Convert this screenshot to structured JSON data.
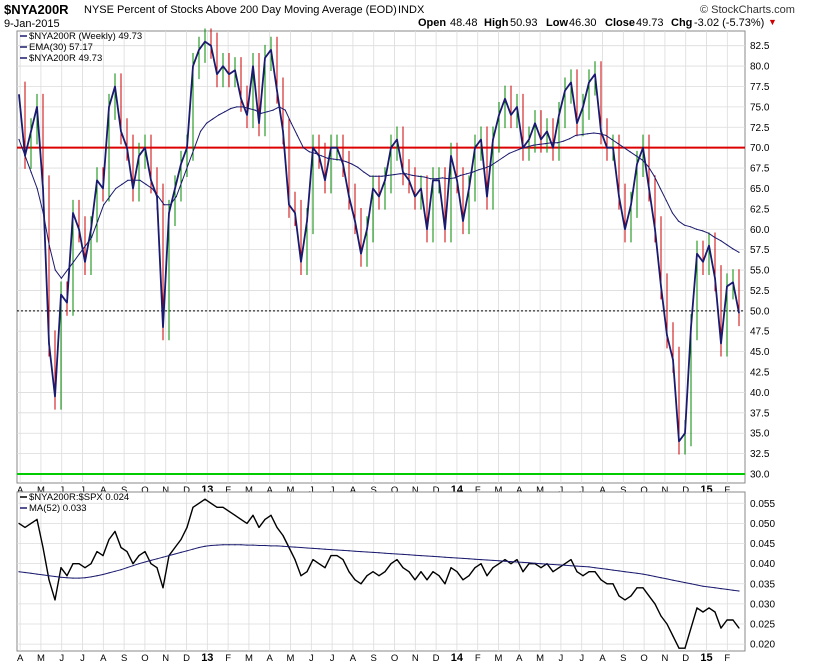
{
  "header": {
    "symbol": "$NYA200R",
    "description": "NYSE Percent of Stocks Above 200 Day Moving Average (EOD)",
    "exchange": "INDX",
    "date": "9-Jan-2015",
    "ohlc": [
      {
        "label": "Open",
        "value": "48.48"
      },
      {
        "label": "High",
        "value": "50.93"
      },
      {
        "label": "Low",
        "value": "46.30"
      },
      {
        "label": "Close",
        "value": "49.73"
      },
      {
        "label": "Chg",
        "value": "-3.02 (-5.73%)"
      }
    ],
    "watermark": "© StockCharts.com",
    "colors": {
      "down": "#cc0000",
      "up": "#008800",
      "brand": "#333333"
    }
  },
  "chart_data": [
    {
      "type": "line",
      "panel": "main",
      "legend": [
        {
          "text": "$NYA200R (Weekly) 49.73",
          "color": "#1a1a6e"
        },
        {
          "text": "EMA(30) 57.17",
          "color": "#1a1a6e"
        },
        {
          "text": "$NYA200R 49.73",
          "color": "#1a1a6e"
        }
      ],
      "ylim": [
        28.9,
        84.3
      ],
      "yticks": [
        "82.5",
        "80.0",
        "77.5",
        "75.0",
        "72.5",
        "70.0",
        "67.5",
        "65.0",
        "62.5",
        "60.0",
        "57.5",
        "55.0",
        "52.5",
        "50.0",
        "47.5",
        "45.0",
        "42.5",
        "40.0",
        "37.5",
        "35.0",
        "32.5",
        "30.0"
      ],
      "hlines": [
        {
          "value": 70.0,
          "color": "#dd0000"
        },
        {
          "value": 30.0,
          "color": "#00cc00"
        },
        {
          "value": 50.0,
          "color": "#000000",
          "style": "dotted"
        }
      ],
      "series": [
        {
          "name": "$NYA200R",
          "color": "#1a1a6e",
          "values": [
            76.5,
            69,
            72,
            75,
            65,
            46,
            39.5,
            52,
            51,
            62,
            60,
            56,
            60,
            66,
            65,
            75,
            77.5,
            72,
            70,
            65,
            69,
            70,
            66,
            64,
            48,
            62,
            65,
            68,
            70,
            80,
            82,
            83,
            82.5,
            79,
            80,
            79,
            79.5,
            76,
            74,
            80,
            73,
            81,
            82,
            77,
            72,
            63,
            62,
            56,
            61,
            70,
            69,
            66,
            70,
            70,
            68,
            64,
            61,
            57,
            60,
            65,
            64,
            66,
            70,
            71,
            67,
            66,
            64,
            65,
            60,
            66,
            66,
            60,
            69,
            66,
            61,
            65,
            70,
            71,
            64,
            71,
            74,
            76,
            74,
            75,
            70,
            71,
            73,
            71,
            72,
            70,
            74,
            77,
            78,
            73,
            75,
            78,
            79,
            72,
            70,
            70,
            64,
            60,
            63,
            68,
            70,
            65,
            60,
            53,
            47,
            44,
            34,
            35,
            48,
            57,
            56,
            58,
            54,
            46,
            53,
            53.5,
            49.73
          ]
        },
        {
          "name": "EMA(30)",
          "color": "#1a1a6e",
          "values": [
            71,
            69,
            67,
            65,
            62,
            58,
            55,
            54,
            55,
            56,
            57,
            58,
            59,
            61,
            63,
            64,
            65,
            65.5,
            66,
            66,
            66,
            65.5,
            65,
            64,
            63,
            63,
            64,
            66,
            68,
            70,
            72,
            73,
            73.5,
            74,
            74.4,
            74.8,
            75,
            75,
            74.8,
            74.6,
            74.2,
            74.4,
            74.6,
            75,
            74.6,
            73,
            71.5,
            70,
            69.5,
            69.3,
            69,
            68.7,
            68.6,
            68.5,
            68.3,
            68,
            67.6,
            67,
            66.5,
            66.5,
            66.5,
            66.6,
            66.7,
            66.8,
            66.8,
            66.6,
            66.5,
            66.4,
            66.2,
            66.2,
            66.3,
            66.2,
            66.3,
            66.6,
            66.8,
            67,
            67.3,
            67.5,
            67.8,
            68.3,
            68.8,
            69.3,
            69.6,
            69.9,
            70.1,
            70.3,
            70.4,
            70.5,
            70.6,
            70.6,
            70.8,
            71.1,
            71.5,
            71.6,
            71.7,
            71.8,
            71.7,
            71.5,
            71,
            70.5,
            70,
            69.5,
            69,
            68.5,
            67.7,
            66.5,
            65,
            63.5,
            62,
            61,
            60.5,
            60.3,
            60,
            59.8,
            59.5,
            59,
            58.6,
            58.1,
            57.6,
            57.17
          ]
        }
      ]
    },
    {
      "type": "line",
      "panel": "ratio",
      "legend": [
        {
          "text": "$NYA200R:$SPX 0.024",
          "color": "#000000"
        },
        {
          "text": "MA(52) 0.033",
          "color": "#1a1a6e"
        }
      ],
      "ylim": [
        0.0183,
        0.0578
      ],
      "yticks": [
        "0.055",
        "0.050",
        "0.045",
        "0.040",
        "0.035",
        "0.030",
        "0.025",
        "0.020"
      ],
      "series": [
        {
          "name": "$NYA200R:$SPX",
          "color": "#000000",
          "values": [
            0.05,
            0.049,
            0.05,
            0.051,
            0.044,
            0.036,
            0.031,
            0.039,
            0.037,
            0.04,
            0.04,
            0.039,
            0.04,
            0.043,
            0.042,
            0.046,
            0.048,
            0.044,
            0.043,
            0.04,
            0.042,
            0.043,
            0.04,
            0.039,
            0.034,
            0.042,
            0.044,
            0.046,
            0.049,
            0.054,
            0.055,
            0.056,
            0.055,
            0.054,
            0.054,
            0.053,
            0.052,
            0.051,
            0.05,
            0.052,
            0.049,
            0.051,
            0.052,
            0.049,
            0.047,
            0.044,
            0.041,
            0.037,
            0.038,
            0.041,
            0.04,
            0.039,
            0.042,
            0.042,
            0.041,
            0.038,
            0.036,
            0.035,
            0.037,
            0.038,
            0.037,
            0.038,
            0.04,
            0.041,
            0.039,
            0.038,
            0.036,
            0.038,
            0.036,
            0.038,
            0.037,
            0.035,
            0.039,
            0.038,
            0.036,
            0.037,
            0.039,
            0.04,
            0.037,
            0.039,
            0.04,
            0.041,
            0.04,
            0.041,
            0.038,
            0.04,
            0.04,
            0.039,
            0.04,
            0.038,
            0.039,
            0.04,
            0.041,
            0.038,
            0.037,
            0.038,
            0.038,
            0.036,
            0.035,
            0.035,
            0.032,
            0.031,
            0.032,
            0.034,
            0.034,
            0.032,
            0.03,
            0.027,
            0.025,
            0.022,
            0.019,
            0.019,
            0.024,
            0.029,
            0.028,
            0.029,
            0.028,
            0.024,
            0.026,
            0.026,
            0.024
          ]
        },
        {
          "name": "MA(52)",
          "color": "#1a1a6e",
          "values": [
            0.038,
            0.0378,
            0.0376,
            0.0374,
            0.0372,
            0.037,
            0.0368,
            0.0366,
            0.0365,
            0.0364,
            0.0364,
            0.0365,
            0.0367,
            0.037,
            0.0373,
            0.0377,
            0.0381,
            0.0385,
            0.039,
            0.0395,
            0.04,
            0.0404,
            0.0408,
            0.0412,
            0.0416,
            0.042,
            0.0424,
            0.0428,
            0.0432,
            0.0436,
            0.044,
            0.0443,
            0.0445,
            0.0446,
            0.0447,
            0.0447,
            0.0447,
            0.0447,
            0.0446,
            0.0446,
            0.0445,
            0.0445,
            0.0444,
            0.0444,
            0.0443,
            0.0442,
            0.0441,
            0.044,
            0.0439,
            0.0438,
            0.0437,
            0.0436,
            0.0435,
            0.0434,
            0.0433,
            0.0432,
            0.0431,
            0.043,
            0.0429,
            0.0428,
            0.0427,
            0.0426,
            0.0425,
            0.0424,
            0.0423,
            0.0422,
            0.0421,
            0.042,
            0.0419,
            0.0418,
            0.0417,
            0.0416,
            0.0415,
            0.0414,
            0.0413,
            0.0412,
            0.0411,
            0.041,
            0.0409,
            0.0408,
            0.0407,
            0.0406,
            0.0405,
            0.0404,
            0.0403,
            0.0402,
            0.0401,
            0.04,
            0.0399,
            0.0398,
            0.0397,
            0.0396,
            0.0395,
            0.0394,
            0.0393,
            0.0392,
            0.039,
            0.0388,
            0.0386,
            0.0384,
            0.0382,
            0.038,
            0.0378,
            0.0376,
            0.0374,
            0.0371,
            0.0368,
            0.0365,
            0.0362,
            0.0359,
            0.0356,
            0.0353,
            0.035,
            0.0347,
            0.0344,
            0.0342,
            0.034,
            0.0338,
            0.0336,
            0.0334,
            0.0332
          ]
        }
      ]
    }
  ],
  "x_axis": {
    "months": [
      "A",
      "M",
      "J",
      "J",
      "A",
      "S",
      "O",
      "N",
      "D",
      "13",
      "F",
      "M",
      "A",
      "M",
      "J",
      "J",
      "A",
      "S",
      "O",
      "N",
      "D",
      "14",
      "F",
      "M",
      "A",
      "M",
      "J",
      "J",
      "A",
      "S",
      "O",
      "N",
      "D",
      "15",
      "F"
    ],
    "bold": [
      "13",
      "14",
      "15"
    ]
  }
}
